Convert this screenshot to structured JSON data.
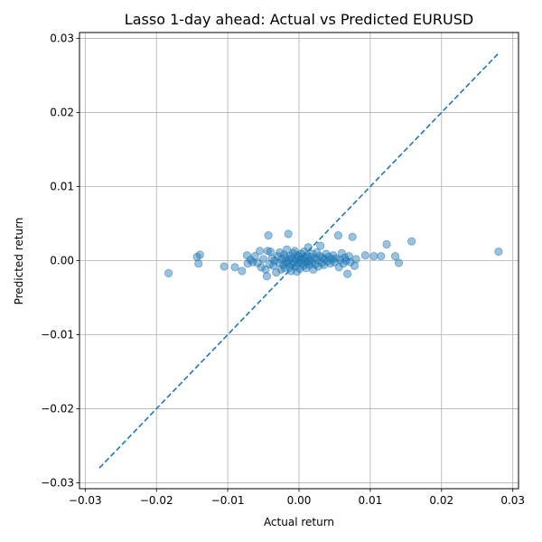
{
  "chart_data": {
    "type": "scatter",
    "title": "Lasso 1-day ahead: Actual vs Predicted EURUSD",
    "xlabel": "Actual return",
    "ylabel": "Predicted return",
    "xlim": [
      -0.0308,
      0.0308
    ],
    "ylim": [
      -0.0308,
      0.0308
    ],
    "xticks": [
      -0.03,
      -0.02,
      -0.01,
      0.0,
      0.01,
      0.02,
      0.03
    ],
    "yticks": [
      -0.03,
      -0.02,
      -0.01,
      0.0,
      0.01,
      0.02,
      0.03
    ],
    "xtick_labels": [
      "−0.03",
      "−0.02",
      "−0.01",
      "0.00",
      "0.01",
      "0.02",
      "0.03"
    ],
    "ytick_labels": [
      "−0.03",
      "−0.02",
      "−0.01",
      "0.00",
      "0.01",
      "0.02",
      "0.03"
    ],
    "grid": true,
    "marker_color": "#1f77b4",
    "reference_line": {
      "style": "dashed",
      "color": "#1f77b4",
      "from": [
        -0.028,
        -0.028
      ],
      "to": [
        0.028,
        0.028
      ]
    },
    "series": [
      {
        "points": [
          [
            -0.0183,
            -0.0017
          ],
          [
            -0.0143,
            0.0005
          ],
          [
            -0.0141,
            -0.0004
          ],
          [
            -0.0139,
            0.0008
          ],
          [
            -0.0105,
            -0.0008
          ],
          [
            -0.009,
            -0.0009
          ],
          [
            -0.008,
            -0.0014
          ],
          [
            -0.0073,
            0.0007
          ],
          [
            -0.0072,
            -0.0004
          ],
          [
            -0.0068,
            0.0001
          ],
          [
            -0.0065,
            -0.0002
          ],
          [
            -0.0062,
            0.0006
          ],
          [
            -0.0058,
            -0.0003
          ],
          [
            -0.0055,
            0.0013
          ],
          [
            -0.0053,
            -0.0009
          ],
          [
            -0.005,
            0.0002
          ],
          [
            -0.0047,
            -0.0012
          ],
          [
            -0.0045,
            -0.0021
          ],
          [
            -0.0044,
            0.0013
          ],
          [
            -0.0043,
            0.0034
          ],
          [
            -0.0041,
            -0.0005
          ],
          [
            -0.004,
            0.0012
          ],
          [
            -0.0038,
            0.0003
          ],
          [
            -0.0036,
            -0.0007
          ],
          [
            -0.0034,
            0.0
          ],
          [
            -0.0032,
            -0.0016
          ],
          [
            -0.003,
            0.0006
          ],
          [
            -0.0028,
            -0.0003
          ],
          [
            -0.0027,
            0.0011
          ],
          [
            -0.0025,
            -0.0012
          ],
          [
            -0.0024,
            0.0002
          ],
          [
            -0.0022,
            -0.0006
          ],
          [
            -0.0021,
            0.0008
          ],
          [
            -0.002,
            -0.001
          ],
          [
            -0.0019,
            0.0004
          ],
          [
            -0.0018,
            -0.0002
          ],
          [
            -0.0017,
            0.0015
          ],
          [
            -0.0016,
            -0.0004
          ],
          [
            -0.0015,
            0.0036
          ],
          [
            -0.0014,
            0.0001
          ],
          [
            -0.0013,
            -0.0009
          ],
          [
            -0.0012,
            0.0006
          ],
          [
            -0.0011,
            -0.0014
          ],
          [
            -0.001,
            0.0003
          ],
          [
            -0.0009,
            -0.0005
          ],
          [
            -0.0008,
            0.001
          ],
          [
            -0.0007,
            -0.0002
          ],
          [
            -0.0006,
            0.0013
          ],
          [
            -0.0005,
            -0.0008
          ],
          [
            -0.0004,
            0.0002
          ],
          [
            -0.0003,
            -0.0015
          ],
          [
            -0.0002,
            0.0007
          ],
          [
            -0.0001,
            -0.0003
          ],
          [
            0.0,
            0.0005
          ],
          [
            0.0001,
            -0.0011
          ],
          [
            0.0002,
            0.0001
          ],
          [
            0.0003,
            0.0009
          ],
          [
            0.0004,
            -0.0004
          ],
          [
            0.0005,
            0.0003
          ],
          [
            0.0006,
            -0.0007
          ],
          [
            0.0007,
            0.0012
          ],
          [
            0.0008,
            -0.0001
          ],
          [
            0.0009,
            0.0004
          ],
          [
            0.001,
            -0.001
          ],
          [
            0.0011,
            0.0007
          ],
          [
            0.0012,
            -0.0003
          ],
          [
            0.0013,
            0.0018
          ],
          [
            0.0014,
            0.0
          ],
          [
            0.0015,
            -0.0006
          ],
          [
            0.0016,
            0.0005
          ],
          [
            0.0018,
            -0.0002
          ],
          [
            0.0019,
            0.0009
          ],
          [
            0.002,
            -0.0012
          ],
          [
            0.0022,
            0.0003
          ],
          [
            0.0023,
            -0.0005
          ],
          [
            0.0025,
            0.0011
          ],
          [
            0.0026,
            0.0001
          ],
          [
            0.0027,
            -0.0008
          ],
          [
            0.0029,
            0.0006
          ],
          [
            0.003,
            0.002
          ],
          [
            0.0032,
            -0.0003
          ],
          [
            0.0033,
            0.0004
          ],
          [
            0.0035,
            -0.0006
          ],
          [
            0.0036,
            0.0002
          ],
          [
            0.0038,
            0.0009
          ],
          [
            0.004,
            -0.0001
          ],
          [
            0.0042,
            0.0005
          ],
          [
            0.0044,
            -0.0004
          ],
          [
            0.0046,
            0.0002
          ],
          [
            0.0048,
            0.0007
          ],
          [
            0.005,
            -0.0002
          ],
          [
            0.0052,
            0.0003
          ],
          [
            0.0055,
            0.0034
          ],
          [
            0.0056,
            -0.0009
          ],
          [
            0.0058,
            0.0001
          ],
          [
            0.006,
            0.001
          ],
          [
            0.0062,
            -0.0004
          ],
          [
            0.0064,
            0.0004
          ],
          [
            0.0066,
            0.0
          ],
          [
            0.0068,
            -0.0018
          ],
          [
            0.007,
            0.0006
          ],
          [
            0.0072,
            -0.0002
          ],
          [
            0.0075,
            0.0032
          ],
          [
            0.0078,
            -0.0007
          ],
          [
            0.008,
            0.0002
          ],
          [
            0.0093,
            0.0007
          ],
          [
            0.0105,
            0.0006
          ],
          [
            0.0115,
            0.0006
          ],
          [
            0.0123,
            0.0022
          ],
          [
            0.0135,
            0.0006
          ],
          [
            0.014,
            -0.0003
          ],
          [
            0.0158,
            0.0026
          ],
          [
            0.028,
            0.0012
          ]
        ]
      }
    ]
  }
}
